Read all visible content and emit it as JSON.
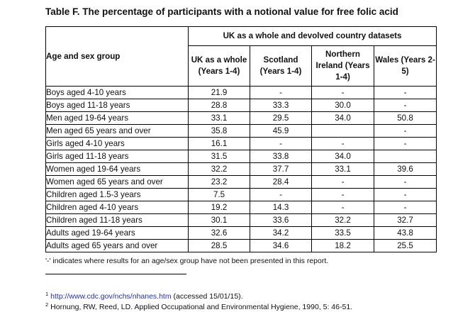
{
  "title": "Table F. The percentage of participants with a notional value for free folic acid",
  "table": {
    "row_header": "Age and sex group",
    "group_header": "UK as a whole and devolved country datasets",
    "columns": [
      "UK as a whole (Years 1-4)",
      "Scotland (Years 1-4)",
      "Northern Ireland (Years 1-4)",
      "Wales (Years 2-5)"
    ],
    "rows": [
      {
        "label": "Boys aged 4-10 years",
        "values": [
          "21.9",
          "-",
          "-",
          "-"
        ]
      },
      {
        "label": "Boys aged 11-18 years",
        "values": [
          "28.8",
          "33.3",
          "30.0",
          "-"
        ]
      },
      {
        "label": "Men aged 19-64 years",
        "values": [
          "33.1",
          "29.5",
          "34.0",
          "50.8"
        ]
      },
      {
        "label": "Men aged 65 years and over",
        "values": [
          "35.8",
          "45.9",
          "",
          "-"
        ]
      },
      {
        "label": "Girls aged 4-10 years",
        "values": [
          "16.1",
          "-",
          "-",
          "-"
        ]
      },
      {
        "label": "Girls aged 11-18 years",
        "values": [
          "31.5",
          "33.8",
          "34.0",
          ""
        ]
      },
      {
        "label": "Women aged 19-64 years",
        "values": [
          "32.2",
          "37.7",
          "33.1",
          "39.6"
        ]
      },
      {
        "label": "Women aged 65 years and over",
        "values": [
          "23.2",
          "28.4",
          "-",
          "-"
        ]
      },
      {
        "label": "Children aged 1.5-3 years",
        "values": [
          "7.5",
          "-",
          "-",
          "-"
        ]
      },
      {
        "label": "Children aged 4-10 years",
        "values": [
          "19.2",
          "14.3",
          "-",
          "-"
        ]
      },
      {
        "label": "Children aged 11-18 years",
        "values": [
          "30.1",
          "33.6",
          "32.2",
          "32.7"
        ]
      },
      {
        "label": "Adults aged 19-64 years",
        "values": [
          "32.6",
          "34.2",
          "33.5",
          "43.8"
        ]
      },
      {
        "label": "Adults aged 65 years and over",
        "values": [
          "28.5",
          "34.6",
          "18.2",
          "25.5"
        ]
      }
    ]
  },
  "note": "'-' indicates where results for an age/sex group have not been presented in this report.",
  "footnotes": [
    {
      "marker": "1",
      "link": "http://www.cdc.gov/nchs/nhanes.htm",
      "text": " (accessed 15/01/15)."
    },
    {
      "marker": "2",
      "text": "Hornung, RW, Reed, LD. Applied Occupational and Environmental Hygiene, 1990, 5: 46-51."
    }
  ]
}
